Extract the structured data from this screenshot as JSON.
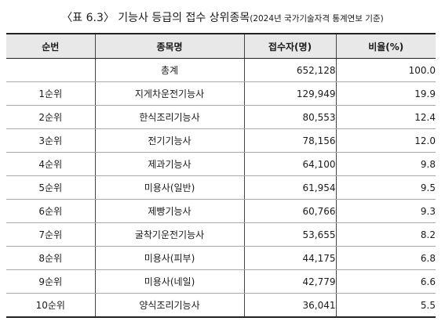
{
  "caption": {
    "main": "〈표 6.3〉 기능사 등급의 접수 상위종목",
    "note": "(2024년 국가기술자격 통계연보 기준)"
  },
  "table": {
    "headers": {
      "rank": "순번",
      "name": "종목명",
      "count": "접수자(명)",
      "ratio": "비율(%)"
    },
    "rows": [
      {
        "rank": "",
        "name": "총계",
        "count": "652,128",
        "ratio": "100.0"
      },
      {
        "rank": "1순위",
        "name": "지게차운전기능사",
        "count": "129,949",
        "ratio": "19.9"
      },
      {
        "rank": "2순위",
        "name": "한식조리기능사",
        "count": "80,553",
        "ratio": "12.4"
      },
      {
        "rank": "3순위",
        "name": "전기기능사",
        "count": "78,156",
        "ratio": "12.0"
      },
      {
        "rank": "4순위",
        "name": "제과기능사",
        "count": "64,100",
        "ratio": "9.8"
      },
      {
        "rank": "5순위",
        "name": "미용사(일반)",
        "count": "61,954",
        "ratio": "9.5"
      },
      {
        "rank": "6순위",
        "name": "제빵기능사",
        "count": "60,766",
        "ratio": "9.3"
      },
      {
        "rank": "7순위",
        "name": "굴착기운전기능사",
        "count": "53,655",
        "ratio": "8.2"
      },
      {
        "rank": "8순위",
        "name": "미용사(피부)",
        "count": "44,175",
        "ratio": "6.8"
      },
      {
        "rank": "9순위",
        "name": "미용사(네일)",
        "count": "42,779",
        "ratio": "6.6"
      },
      {
        "rank": "10순위",
        "name": "양식조리기능사",
        "count": "36,041",
        "ratio": "5.5"
      }
    ]
  }
}
